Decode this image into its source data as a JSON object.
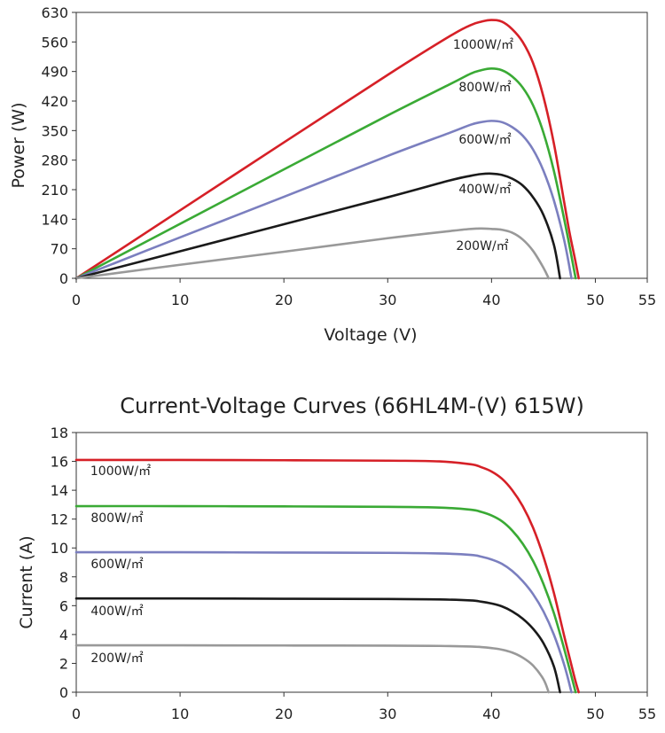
{
  "chart_data": [
    {
      "type": "line",
      "title": "",
      "xlabel": "Voltage (V)",
      "ylabel": "Power (W)",
      "xlim": [
        0,
        55
      ],
      "ylim": [
        0,
        630
      ],
      "xticks": [
        0,
        10,
        20,
        30,
        40,
        50,
        55
      ],
      "yticks": [
        0,
        70,
        140,
        210,
        280,
        350,
        420,
        490,
        560,
        630
      ],
      "grid": false,
      "series": [
        {
          "name": "1000W/㎡",
          "color": "#d62027",
          "x": [
            0,
            10,
            20,
            30,
            36,
            38,
            39,
            40,
            41,
            42,
            43,
            44,
            45,
            46,
            47,
            47.5,
            48,
            48.4
          ],
          "y": [
            0,
            161,
            322,
            482,
            574,
            600,
            608,
            612,
            608,
            590,
            560,
            510,
            430,
            320,
            180,
            110,
            50,
            0
          ]
        },
        {
          "name": "800W/㎡",
          "color": "#3aaa35",
          "x": [
            0,
            10,
            20,
            30,
            36,
            38,
            39,
            40,
            41,
            42,
            43,
            44,
            45,
            46,
            47,
            47.6,
            48.1
          ],
          "y": [
            0,
            129,
            258,
            386,
            460,
            485,
            493,
            497,
            493,
            478,
            452,
            410,
            345,
            255,
            140,
            65,
            0
          ]
        },
        {
          "name": "600W/㎡",
          "color": "#7b7fbf",
          "x": [
            0,
            10,
            20,
            30,
            36,
            38,
            39,
            40,
            41,
            42,
            43,
            44,
            45,
            46,
            47,
            47.7
          ],
          "y": [
            0,
            97,
            193,
            290,
            345,
            364,
            370,
            373,
            370,
            358,
            338,
            305,
            255,
            185,
            90,
            0
          ]
        },
        {
          "name": "400W/㎡",
          "color": "#1a1a1a",
          "x": [
            0,
            10,
            20,
            30,
            36,
            38,
            39,
            40,
            41,
            42,
            43,
            44,
            45,
            46,
            46.6
          ],
          "y": [
            0,
            64,
            128,
            192,
            232,
            243,
            247,
            248,
            245,
            236,
            220,
            192,
            150,
            80,
            0
          ]
        },
        {
          "name": "200W/㎡",
          "color": "#999999",
          "x": [
            0,
            10,
            20,
            30,
            36,
            38,
            39,
            40,
            41,
            42,
            43,
            44,
            45,
            45.5
          ],
          "y": [
            0,
            32,
            63,
            95,
            112,
            117,
            118,
            117,
            115,
            108,
            92,
            65,
            25,
            0
          ]
        }
      ]
    },
    {
      "type": "line",
      "title": "Current-Voltage Curves (66HL4M-(V) 615W)",
      "xlabel": "",
      "ylabel": "Current (A)",
      "xlim": [
        0,
        55
      ],
      "ylim": [
        0,
        18
      ],
      "xticks": [
        0,
        10,
        20,
        30,
        40,
        50,
        55
      ],
      "yticks": [
        0,
        2,
        4,
        6,
        8,
        10,
        12,
        14,
        16,
        18
      ],
      "grid": false,
      "series": [
        {
          "name": "1000W/㎡",
          "color": "#d62027",
          "x": [
            0,
            10,
            20,
            30,
            35,
            38,
            39,
            40,
            41,
            42,
            43,
            44,
            45,
            46,
            47,
            48,
            48.4
          ],
          "y": [
            16.1,
            16.1,
            16.08,
            16.05,
            16.0,
            15.8,
            15.6,
            15.3,
            14.8,
            14.0,
            12.9,
            11.4,
            9.4,
            6.9,
            3.9,
            1.0,
            0
          ]
        },
        {
          "name": "800W/㎡",
          "color": "#3aaa35",
          "x": [
            0,
            10,
            20,
            30,
            35,
            38,
            39,
            40,
            41,
            42,
            43,
            44,
            45,
            46,
            47,
            48.1
          ],
          "y": [
            12.9,
            12.9,
            12.88,
            12.85,
            12.8,
            12.65,
            12.5,
            12.25,
            11.85,
            11.2,
            10.3,
            9.1,
            7.5,
            5.5,
            3.0,
            0
          ]
        },
        {
          "name": "600W/㎡",
          "color": "#7b7fbf",
          "x": [
            0,
            10,
            20,
            30,
            35,
            38,
            39,
            40,
            41,
            42,
            43,
            44,
            45,
            46,
            47,
            47.7
          ],
          "y": [
            9.7,
            9.7,
            9.68,
            9.66,
            9.62,
            9.52,
            9.4,
            9.2,
            8.9,
            8.4,
            7.7,
            6.8,
            5.6,
            4.0,
            1.9,
            0
          ]
        },
        {
          "name": "400W/㎡",
          "color": "#1a1a1a",
          "x": [
            0,
            10,
            20,
            30,
            35,
            38,
            39,
            40,
            41,
            42,
            43,
            44,
            45,
            46,
            46.6
          ],
          "y": [
            6.5,
            6.5,
            6.48,
            6.46,
            6.43,
            6.36,
            6.28,
            6.15,
            5.95,
            5.6,
            5.1,
            4.4,
            3.4,
            1.8,
            0
          ]
        },
        {
          "name": "200W/㎡",
          "color": "#999999",
          "x": [
            0,
            10,
            20,
            30,
            35,
            38,
            39,
            40,
            41,
            42,
            43,
            44,
            45,
            45.5
          ],
          "y": [
            3.25,
            3.25,
            3.24,
            3.23,
            3.21,
            3.17,
            3.13,
            3.06,
            2.95,
            2.75,
            2.4,
            1.85,
            0.9,
            0
          ]
        }
      ]
    }
  ]
}
